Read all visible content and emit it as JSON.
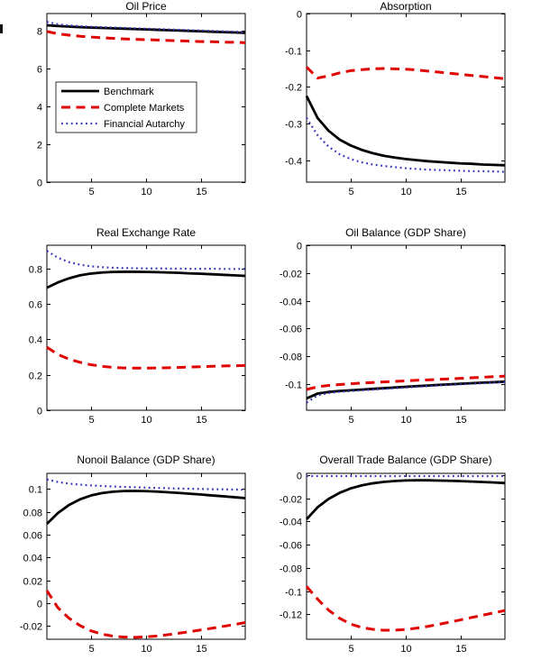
{
  "figure": {
    "background": "#ffffff",
    "axis_color": "#000000",
    "text_color": "#000000"
  },
  "legend": {
    "entries": [
      {
        "label": "Benchmark",
        "key": "benchmark"
      },
      {
        "label": "Complete Markets",
        "key": "complete_markets"
      },
      {
        "label": "Financial Autarchy",
        "key": "financial_autarchy"
      }
    ]
  },
  "series_styles": {
    "benchmark": {
      "color": "#000000",
      "width": 2.8,
      "dash": ""
    },
    "complete_markets": {
      "color": "#e00000",
      "width": 3.0,
      "dash": "10 6.5"
    },
    "financial_autarchy": {
      "color": "#3434bd",
      "width": 2.2,
      "dash": "1.8 3.6"
    }
  },
  "x_values": [
    1,
    2,
    3,
    4,
    5,
    6,
    7,
    8,
    9,
    10,
    11,
    12,
    13,
    14,
    15,
    16,
    17,
    18,
    19
  ],
  "chart_data": [
    {
      "type": "line",
      "id": "oil-price",
      "title": "Oil Price",
      "xlabel": "",
      "ylabel": "",
      "xlim": [
        1,
        19
      ],
      "xticks": [
        5,
        10,
        15
      ],
      "ylim": [
        0,
        8.9
      ],
      "ytick_vals": [
        0,
        2,
        4,
        6,
        8
      ],
      "ytick_labels": [
        "0",
        "2",
        "4",
        "6",
        "8"
      ],
      "grid": false,
      "show_legend": true,
      "legend_position": "left-middle",
      "series": [
        {
          "name": "Benchmark",
          "key": "benchmark",
          "values": [
            8.28,
            8.24,
            8.21,
            8.18,
            8.16,
            8.14,
            8.12,
            8.1,
            8.08,
            8.06,
            8.04,
            8.02,
            8.0,
            7.98,
            7.96,
            7.94,
            7.92,
            7.9,
            7.88
          ]
        },
        {
          "name": "Complete Markets",
          "key": "complete_markets",
          "values": [
            7.95,
            7.83,
            7.76,
            7.7,
            7.66,
            7.62,
            7.59,
            7.56,
            7.54,
            7.52,
            7.5,
            7.48,
            7.46,
            7.44,
            7.42,
            7.41,
            7.39,
            7.38,
            7.36
          ]
        },
        {
          "name": "Financial Autarchy",
          "key": "financial_autarchy",
          "values": [
            8.46,
            8.33,
            8.27,
            8.23,
            8.2,
            8.18,
            8.16,
            8.14,
            8.12,
            8.1,
            8.08,
            8.06,
            8.04,
            8.02,
            8.0,
            7.98,
            7.96,
            7.94,
            7.92
          ]
        }
      ]
    },
    {
      "type": "line",
      "id": "absorption",
      "title": "Absorption",
      "xlabel": "",
      "ylabel": "",
      "xlim": [
        1,
        19
      ],
      "xticks": [
        5,
        10,
        15
      ],
      "ylim": [
        -0.46,
        0
      ],
      "ytick_vals": [
        0,
        -0.1,
        -0.2,
        -0.3,
        -0.4
      ],
      "ytick_labels": [
        "0",
        "-0.1",
        "-0.2",
        "-0.3",
        "-0.4"
      ],
      "grid": false,
      "show_legend": false,
      "series": [
        {
          "name": "Benchmark",
          "key": "benchmark",
          "values": [
            -0.225,
            -0.285,
            -0.32,
            -0.344,
            -0.36,
            -0.372,
            -0.381,
            -0.388,
            -0.393,
            -0.397,
            -0.4,
            -0.403,
            -0.405,
            -0.407,
            -0.409,
            -0.41,
            -0.412,
            -0.413,
            -0.414
          ]
        },
        {
          "name": "Complete Markets",
          "key": "complete_markets",
          "values": [
            -0.146,
            -0.176,
            -0.17,
            -0.162,
            -0.156,
            -0.153,
            -0.151,
            -0.15,
            -0.151,
            -0.152,
            -0.154,
            -0.157,
            -0.16,
            -0.163,
            -0.166,
            -0.169,
            -0.172,
            -0.175,
            -0.178
          ]
        },
        {
          "name": "Financial Autarchy",
          "key": "financial_autarchy",
          "values": [
            -0.285,
            -0.332,
            -0.363,
            -0.384,
            -0.397,
            -0.406,
            -0.412,
            -0.416,
            -0.419,
            -0.422,
            -0.424,
            -0.426,
            -0.427,
            -0.428,
            -0.429,
            -0.43,
            -0.43,
            -0.431,
            -0.432
          ]
        }
      ]
    },
    {
      "type": "line",
      "id": "real-exchange-rate",
      "title": "Real Exchange Rate",
      "xlabel": "",
      "ylabel": "",
      "xlim": [
        1,
        19
      ],
      "xticks": [
        5,
        10,
        15
      ],
      "ylim": [
        0,
        0.932
      ],
      "ytick_vals": [
        0,
        0.2,
        0.4,
        0.6,
        0.8
      ],
      "ytick_labels": [
        "0",
        "0.2",
        "0.4",
        "0.6",
        "0.8"
      ],
      "grid": false,
      "show_legend": false,
      "series": [
        {
          "name": "Benchmark",
          "key": "benchmark",
          "values": [
            0.692,
            0.722,
            0.745,
            0.762,
            0.772,
            0.778,
            0.781,
            0.782,
            0.782,
            0.781,
            0.78,
            0.778,
            0.776,
            0.773,
            0.771,
            0.768,
            0.765,
            0.762,
            0.759
          ]
        },
        {
          "name": "Complete Markets",
          "key": "complete_markets",
          "values": [
            0.356,
            0.315,
            0.289,
            0.271,
            0.257,
            0.248,
            0.242,
            0.239,
            0.238,
            0.238,
            0.239,
            0.24,
            0.242,
            0.244,
            0.246,
            0.248,
            0.25,
            0.251,
            0.253
          ]
        },
        {
          "name": "Financial Autarchy",
          "key": "financial_autarchy",
          "values": [
            0.9,
            0.861,
            0.837,
            0.822,
            0.813,
            0.808,
            0.805,
            0.803,
            0.802,
            0.801,
            0.801,
            0.8,
            0.8,
            0.799,
            0.799,
            0.799,
            0.798,
            0.798,
            0.798
          ]
        }
      ]
    },
    {
      "type": "line",
      "id": "oil-balance",
      "title": "Oil Balance (GDP Share)",
      "xlabel": "",
      "ylabel": "",
      "xlim": [
        1,
        19
      ],
      "xticks": [
        5,
        10,
        15
      ],
      "ylim": [
        -0.119,
        0
      ],
      "ytick_vals": [
        0,
        -0.02,
        -0.04,
        -0.06,
        -0.08,
        -0.1
      ],
      "ytick_labels": [
        "0",
        "-0.02",
        "-0.04",
        "-0.06",
        "-0.08",
        "-0.1"
      ],
      "grid": false,
      "show_legend": false,
      "series": [
        {
          "name": "Benchmark",
          "key": "benchmark",
          "values": [
            -0.1105,
            -0.107,
            -0.1058,
            -0.1051,
            -0.1046,
            -0.1041,
            -0.1036,
            -0.1031,
            -0.1026,
            -0.1021,
            -0.1016,
            -0.1012,
            -0.1007,
            -0.1003,
            -0.0999,
            -0.0995,
            -0.0991,
            -0.0988,
            -0.0984
          ]
        },
        {
          "name": "Complete Markets",
          "key": "complete_markets",
          "values": [
            -0.104,
            -0.1021,
            -0.1011,
            -0.1005,
            -0.0999,
            -0.0994,
            -0.099,
            -0.0986,
            -0.0982,
            -0.0978,
            -0.0974,
            -0.0971,
            -0.0967,
            -0.0964,
            -0.096,
            -0.0956,
            -0.0952,
            -0.0948,
            -0.0944
          ]
        },
        {
          "name": "Financial Autarchy",
          "key": "financial_autarchy",
          "values": [
            -0.1135,
            -0.1083,
            -0.1066,
            -0.1057,
            -0.1051,
            -0.1046,
            -0.1041,
            -0.1036,
            -0.1031,
            -0.1026,
            -0.1021,
            -0.1016,
            -0.1011,
            -0.1007,
            -0.1003,
            -0.0999,
            -0.0995,
            -0.0991,
            -0.0987
          ]
        }
      ]
    },
    {
      "type": "line",
      "id": "nonoil-balance",
      "title": "Nonoil Balance (GDP Share)",
      "xlabel": "",
      "ylabel": "",
      "xlim": [
        1,
        19
      ],
      "xticks": [
        5,
        10,
        15
      ],
      "ylim": [
        -0.0316,
        0.1138
      ],
      "ytick_vals": [
        0.1,
        0.08,
        0.06,
        0.04,
        0.02,
        0,
        -0.02
      ],
      "ytick_labels": [
        "0.1",
        "0.08",
        "0.06",
        "0.04",
        "0.02",
        "0",
        "-0.02"
      ],
      "grid": false,
      "show_legend": false,
      "series": [
        {
          "name": "Benchmark",
          "key": "benchmark",
          "values": [
            0.0695,
            0.079,
            0.086,
            0.091,
            0.0944,
            0.0965,
            0.0977,
            0.0983,
            0.0984,
            0.0982,
            0.0978,
            0.0972,
            0.0966,
            0.0959,
            0.0952,
            0.0944,
            0.0937,
            0.0929,
            0.0921
          ]
        },
        {
          "name": "Complete Markets",
          "key": "complete_markets",
          "values": [
            0.011,
            -0.004,
            -0.0131,
            -0.0196,
            -0.0242,
            -0.0271,
            -0.0289,
            -0.0297,
            -0.0299,
            -0.0295,
            -0.0287,
            -0.0276,
            -0.0263,
            -0.0249,
            -0.0234,
            -0.0219,
            -0.0203,
            -0.0187,
            -0.017
          ]
        },
        {
          "name": "Financial Autarchy",
          "key": "financial_autarchy",
          "values": [
            0.1085,
            0.1062,
            0.1048,
            0.1039,
            0.1032,
            0.1027,
            0.1023,
            0.1019,
            0.1016,
            0.1013,
            0.101,
            0.1008,
            0.1005,
            0.1003,
            0.1001,
            0.0999,
            0.0998,
            0.0996,
            0.0995
          ]
        }
      ]
    },
    {
      "type": "line",
      "id": "overall-trade-balance",
      "title": "Overall Trade Balance (GDP Share)",
      "xlabel": "",
      "ylabel": "",
      "xlim": [
        1,
        19
      ],
      "xticks": [
        5,
        10,
        15
      ],
      "ylim": [
        -0.1416,
        0.0016
      ],
      "ytick_vals": [
        0,
        -0.02,
        -0.04,
        -0.06,
        -0.08,
        -0.1,
        -0.12
      ],
      "ytick_labels": [
        "0",
        "-0.02",
        "-0.04",
        "-0.06",
        "-0.08",
        "-0.1",
        "-0.12"
      ],
      "grid": false,
      "show_legend": false,
      "series": [
        {
          "name": "Benchmark",
          "key": "benchmark",
          "values": [
            -0.038,
            -0.0277,
            -0.0205,
            -0.0152,
            -0.0114,
            -0.0088,
            -0.007,
            -0.0058,
            -0.005,
            -0.0045,
            -0.0044,
            -0.0044,
            -0.0046,
            -0.0048,
            -0.0051,
            -0.0055,
            -0.0059,
            -0.0063,
            -0.0068
          ]
        },
        {
          "name": "Complete Markets",
          "key": "complete_markets",
          "values": [
            -0.096,
            -0.107,
            -0.1165,
            -0.1235,
            -0.1285,
            -0.1315,
            -0.133,
            -0.1338,
            -0.1338,
            -0.1332,
            -0.132,
            -0.1305,
            -0.1287,
            -0.1268,
            -0.1248,
            -0.1228,
            -0.1208,
            -0.1188,
            -0.1168
          ]
        },
        {
          "name": "Financial Autarchy",
          "key": "financial_autarchy",
          "values": [
            -0.0008,
            -0.0008,
            -0.0008,
            -0.0008,
            -0.0008,
            -0.0008,
            -0.0008,
            -0.0008,
            -0.0008,
            -0.0008,
            -0.0008,
            -0.0008,
            -0.0008,
            -0.0008,
            -0.0008,
            -0.0008,
            -0.0008,
            -0.0008,
            -0.0008
          ]
        }
      ]
    }
  ]
}
